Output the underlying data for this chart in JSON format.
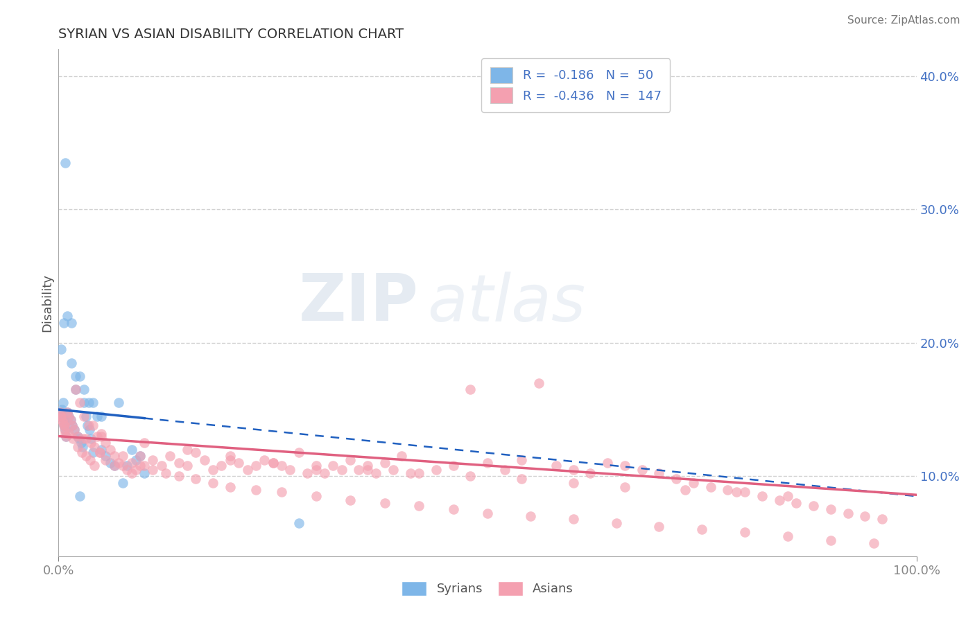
{
  "title": "SYRIAN VS ASIAN DISABILITY CORRELATION CHART",
  "source": "Source: ZipAtlas.com",
  "ylabel": "Disability",
  "watermark": "ZIPatlas",
  "syrian_R": -0.186,
  "syrian_N": 50,
  "asian_R": -0.436,
  "asian_N": 147,
  "syrian_color": "#7eb6e8",
  "asian_color": "#f4a0b0",
  "syrian_line_color": "#2060c0",
  "asian_line_color": "#e06080",
  "background_color": "#ffffff",
  "grid_color": "#cccccc",
  "title_color": "#333333",
  "source_color": "#777777",
  "legend_color": "#4472c4",
  "xlim": [
    0.0,
    1.0
  ],
  "ylim": [
    0.04,
    0.42
  ],
  "ytick_vals": [
    0.1,
    0.2,
    0.3,
    0.4
  ],
  "ytick_labels": [
    "10.0%",
    "20.0%",
    "30.0%",
    "40.0%"
  ],
  "syrians_x": [
    0.002,
    0.003,
    0.004,
    0.005,
    0.006,
    0.007,
    0.008,
    0.009,
    0.01,
    0.012,
    0.014,
    0.016,
    0.018,
    0.02,
    0.022,
    0.024,
    0.026,
    0.028,
    0.03,
    0.032,
    0.034,
    0.036,
    0.038,
    0.04,
    0.045,
    0.05,
    0.055,
    0.06,
    0.065,
    0.07,
    0.075,
    0.08,
    0.085,
    0.09,
    0.095,
    0.1,
    0.003,
    0.006,
    0.01,
    0.015,
    0.02,
    0.025,
    0.03,
    0.035,
    0.04,
    0.05,
    0.008,
    0.015,
    0.025,
    0.28
  ],
  "syrians_y": [
    0.145,
    0.148,
    0.15,
    0.155,
    0.138,
    0.142,
    0.135,
    0.13,
    0.148,
    0.145,
    0.142,
    0.138,
    0.135,
    0.165,
    0.13,
    0.128,
    0.125,
    0.122,
    0.155,
    0.145,
    0.138,
    0.135,
    0.128,
    0.118,
    0.145,
    0.12,
    0.115,
    0.11,
    0.108,
    0.155,
    0.095,
    0.108,
    0.12,
    0.112,
    0.115,
    0.102,
    0.195,
    0.215,
    0.22,
    0.185,
    0.175,
    0.175,
    0.165,
    0.155,
    0.155,
    0.145,
    0.335,
    0.215,
    0.085,
    0.065
  ],
  "asians_x": [
    0.002,
    0.003,
    0.004,
    0.005,
    0.006,
    0.007,
    0.008,
    0.009,
    0.01,
    0.012,
    0.014,
    0.016,
    0.018,
    0.02,
    0.022,
    0.025,
    0.028,
    0.03,
    0.032,
    0.035,
    0.038,
    0.04,
    0.042,
    0.045,
    0.048,
    0.05,
    0.055,
    0.06,
    0.065,
    0.07,
    0.075,
    0.08,
    0.085,
    0.09,
    0.095,
    0.1,
    0.11,
    0.12,
    0.13,
    0.14,
    0.15,
    0.16,
    0.17,
    0.18,
    0.19,
    0.2,
    0.21,
    0.22,
    0.23,
    0.24,
    0.25,
    0.26,
    0.27,
    0.28,
    0.29,
    0.3,
    0.31,
    0.32,
    0.33,
    0.34,
    0.35,
    0.36,
    0.37,
    0.38,
    0.39,
    0.4,
    0.42,
    0.44,
    0.46,
    0.48,
    0.5,
    0.52,
    0.54,
    0.56,
    0.58,
    0.6,
    0.62,
    0.64,
    0.66,
    0.68,
    0.7,
    0.72,
    0.74,
    0.76,
    0.78,
    0.8,
    0.82,
    0.84,
    0.86,
    0.88,
    0.9,
    0.92,
    0.94,
    0.96,
    0.003,
    0.007,
    0.012,
    0.017,
    0.022,
    0.027,
    0.032,
    0.037,
    0.042,
    0.048,
    0.055,
    0.065,
    0.075,
    0.085,
    0.095,
    0.11,
    0.125,
    0.14,
    0.16,
    0.18,
    0.2,
    0.23,
    0.26,
    0.3,
    0.34,
    0.38,
    0.42,
    0.46,
    0.5,
    0.55,
    0.6,
    0.65,
    0.7,
    0.75,
    0.8,
    0.85,
    0.9,
    0.95,
    0.05,
    0.1,
    0.15,
    0.2,
    0.25,
    0.3,
    0.36,
    0.41,
    0.48,
    0.54,
    0.6,
    0.66,
    0.73,
    0.79,
    0.85
  ],
  "asians_y": [
    0.148,
    0.145,
    0.142,
    0.14,
    0.138,
    0.135,
    0.132,
    0.13,
    0.148,
    0.145,
    0.142,
    0.138,
    0.135,
    0.165,
    0.13,
    0.155,
    0.128,
    0.145,
    0.128,
    0.138,
    0.125,
    0.138,
    0.122,
    0.13,
    0.118,
    0.132,
    0.125,
    0.12,
    0.115,
    0.11,
    0.108,
    0.105,
    0.102,
    0.105,
    0.115,
    0.108,
    0.112,
    0.108,
    0.115,
    0.11,
    0.108,
    0.118,
    0.112,
    0.105,
    0.108,
    0.112,
    0.11,
    0.105,
    0.108,
    0.112,
    0.11,
    0.108,
    0.105,
    0.118,
    0.102,
    0.105,
    0.102,
    0.108,
    0.105,
    0.112,
    0.105,
    0.108,
    0.102,
    0.11,
    0.105,
    0.115,
    0.102,
    0.105,
    0.108,
    0.165,
    0.11,
    0.105,
    0.112,
    0.17,
    0.108,
    0.105,
    0.102,
    0.11,
    0.108,
    0.105,
    0.102,
    0.098,
    0.095,
    0.092,
    0.09,
    0.088,
    0.085,
    0.082,
    0.08,
    0.078,
    0.075,
    0.072,
    0.07,
    0.068,
    0.145,
    0.138,
    0.132,
    0.128,
    0.122,
    0.118,
    0.115,
    0.112,
    0.108,
    0.118,
    0.112,
    0.108,
    0.115,
    0.11,
    0.108,
    0.105,
    0.102,
    0.1,
    0.098,
    0.095,
    0.092,
    0.09,
    0.088,
    0.085,
    0.082,
    0.08,
    0.078,
    0.075,
    0.072,
    0.07,
    0.068,
    0.065,
    0.062,
    0.06,
    0.058,
    0.055,
    0.052,
    0.05,
    0.13,
    0.125,
    0.12,
    0.115,
    0.11,
    0.108,
    0.105,
    0.102,
    0.1,
    0.098,
    0.095,
    0.092,
    0.09,
    0.088,
    0.085
  ]
}
